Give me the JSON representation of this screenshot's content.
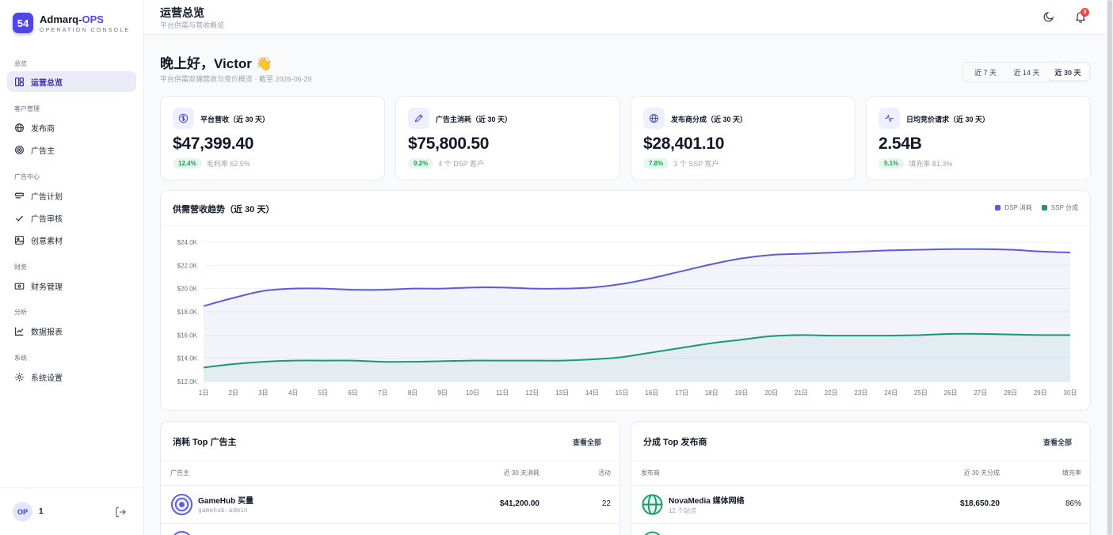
{
  "brand": {
    "logo": "54",
    "name_prefix": "Admarq-",
    "name_accent": "OPS",
    "subtitle": "OPERATION CONSOLE"
  },
  "sidebar": {
    "groups": [
      {
        "title": "总览",
        "items": [
          {
            "label": "运营总览",
            "icon": "dashboard-icon",
            "active": true
          }
        ]
      },
      {
        "title": "客户管理",
        "items": [
          {
            "label": "发布商",
            "icon": "globe-icon"
          },
          {
            "label": "广告主",
            "icon": "target-icon"
          }
        ]
      },
      {
        "title": "广告中心",
        "items": [
          {
            "label": "广告计划",
            "icon": "campaign-icon"
          },
          {
            "label": "广告审核",
            "icon": "check-icon"
          },
          {
            "label": "创意素材",
            "icon": "image-icon"
          }
        ]
      },
      {
        "title": "财务",
        "items": [
          {
            "label": "财务管理",
            "icon": "wallet-icon"
          }
        ]
      },
      {
        "title": "分析",
        "items": [
          {
            "label": "数据报表",
            "icon": "chart-icon"
          }
        ]
      },
      {
        "title": "系统",
        "items": [
          {
            "label": "系统设置",
            "icon": "gear-icon"
          }
        ]
      }
    ],
    "user": {
      "initials": "OP",
      "name": "1"
    }
  },
  "header": {
    "title": "运营总览",
    "subtitle": "平台供需与营收概览",
    "notifications": "3"
  },
  "greeting": {
    "text": "晚上好，Victor 👋",
    "subtitle": "平台供需双端营收与竞价概览 · 截至 2026-06-29"
  },
  "range_tabs": [
    {
      "label": "近 7 天"
    },
    {
      "label": "近 14 天"
    },
    {
      "label": "近 30 天",
      "active": true
    }
  ],
  "stats": [
    {
      "label": "平台营收（近 30 天）",
      "value": "$47,399.40",
      "pill": "12.4%",
      "meta": "毛利率 62.5%",
      "icon": "dollar-icon"
    },
    {
      "label": "广告主消耗（近 30 天）",
      "value": "$75,800.50",
      "pill": "9.2%",
      "meta": "4 个 DSP 客户",
      "icon": "pen-icon"
    },
    {
      "label": "发布商分成（近 30 天）",
      "value": "$28,401.10",
      "pill": "7.8%",
      "meta": "3 个 SSP 客户",
      "icon": "globe-icon"
    },
    {
      "label": "日均竞价请求（近 30 天）",
      "value": "2.54B",
      "pill": "5.1%",
      "meta": "填充率 81.3%",
      "icon": "pulse-icon"
    }
  ],
  "chart_data": {
    "type": "area",
    "title": "供需营收趋势（近 30 天）",
    "legend_position": "top-right",
    "categories": [
      "1日",
      "2日",
      "3日",
      "4日",
      "5日",
      "6日",
      "7日",
      "8日",
      "9日",
      "10日",
      "11日",
      "12日",
      "13日",
      "14日",
      "15日",
      "16日",
      "17日",
      "18日",
      "19日",
      "20日",
      "21日",
      "22日",
      "23日",
      "24日",
      "25日",
      "26日",
      "27日",
      "28日",
      "29日",
      "30日"
    ],
    "y_ticks": [
      "$12.0K",
      "$14.0K",
      "$16.0K",
      "$18.0K",
      "$20.0K",
      "$22.0K",
      "$24.0K"
    ],
    "ylim": [
      12000,
      24000
    ],
    "grid": true,
    "series": [
      {
        "name": "DSP 消耗",
        "color": "#5b5bd6",
        "values": [
          18500,
          19200,
          19800,
          20000,
          20000,
          19900,
          19900,
          20000,
          20000,
          20100,
          20100,
          20000,
          20000,
          20100,
          20400,
          20900,
          21500,
          22100,
          22600,
          22900,
          23000,
          23100,
          23200,
          23300,
          23350,
          23400,
          23400,
          23350,
          23200,
          23100
        ]
      },
      {
        "name": "SSP 分成",
        "color": "#1a9a6c",
        "values": [
          13200,
          13500,
          13700,
          13800,
          13800,
          13800,
          13700,
          13700,
          13750,
          13800,
          13800,
          13800,
          13800,
          13900,
          14100,
          14500,
          14900,
          15300,
          15600,
          15900,
          16000,
          15950,
          15950,
          15950,
          16000,
          16100,
          16100,
          16050,
          16000,
          16000
        ]
      }
    ]
  },
  "advertisers_table": {
    "title": "消耗 Top 广告主",
    "view_all": "查看全部",
    "headers": [
      "广告主",
      "近 30 天消耗",
      "活动"
    ],
    "rows": [
      {
        "name": "GameHub 买量",
        "sub": "gamehub.admin",
        "value": "$41,200.00",
        "count": "22"
      }
    ]
  },
  "publishers_table": {
    "title": "分成 Top 发布商",
    "view_all": "查看全部",
    "headers": [
      "发布商",
      "近 30 天分成",
      "填充率"
    ],
    "rows": [
      {
        "name": "NovaMedia 媒体网络",
        "sub": "12 个站点",
        "value": "$18,650.20",
        "count": "86%"
      }
    ]
  }
}
